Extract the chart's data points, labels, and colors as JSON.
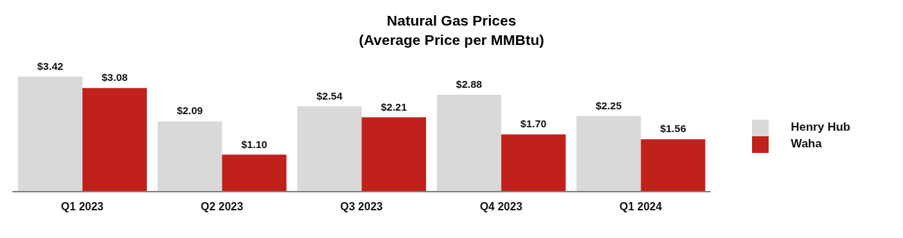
{
  "chart_data": {
    "type": "bar",
    "title": "Natural Gas Prices",
    "subtitle": "(Average Price per MMBtu)",
    "categories": [
      "Q1 2023",
      "Q2 2023",
      "Q3 2023",
      "Q4 2023",
      "Q1 2024"
    ],
    "series": [
      {
        "name": "Henry Hub",
        "color": "#d9d9d9",
        "values": [
          3.42,
          2.09,
          2.54,
          2.88,
          2.25
        ],
        "value_labels": [
          "$3.42",
          "$2.09",
          "$2.54",
          "$2.88",
          "$2.25"
        ]
      },
      {
        "name": "Waha",
        "color": "#c0211a",
        "values": [
          3.08,
          1.1,
          2.21,
          1.7,
          1.56
        ],
        "value_labels": [
          "$3.08",
          "$1.10",
          "$2.21",
          "$1.70",
          "$1.56"
        ]
      }
    ],
    "legend": "right",
    "grid": false
  }
}
